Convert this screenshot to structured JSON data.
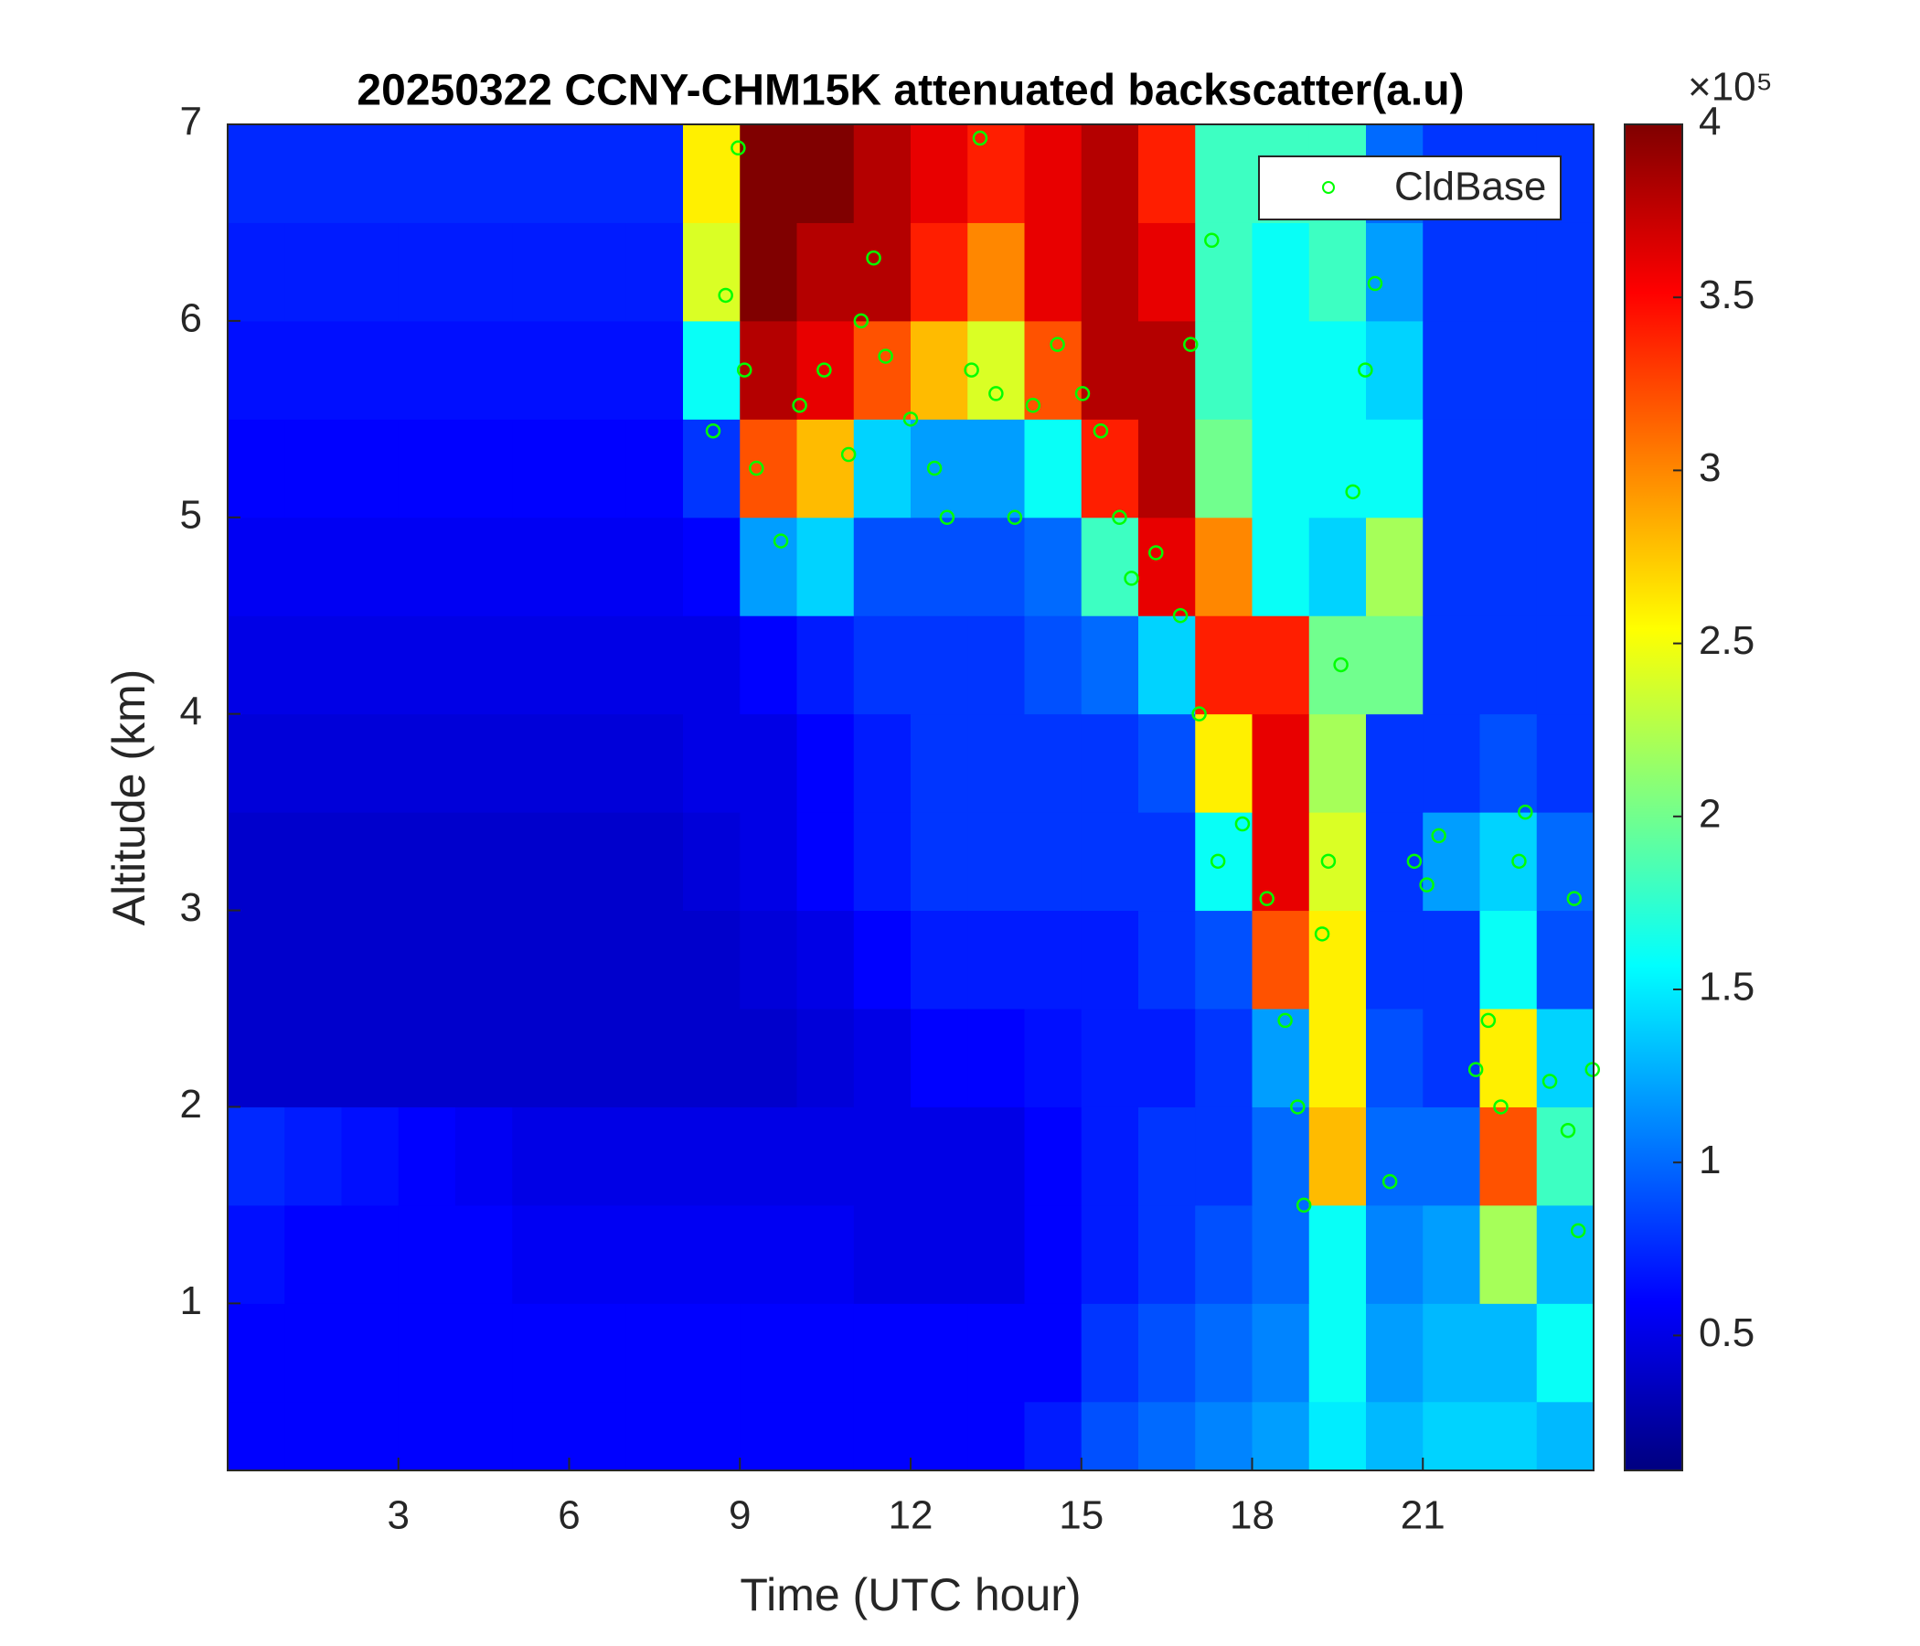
{
  "chart_data": {
    "type": "heatmap",
    "title": "20250322 CCNY-CHM15K attenuated backscatter(a.u)",
    "x_label": "Time (UTC hour)",
    "y_label": "Altitude (km)",
    "colormap": "jet",
    "colorbar_multiplier": "×10⁵",
    "x": [
      0,
      1,
      2,
      3,
      4,
      5,
      6,
      7,
      8,
      9,
      10,
      11,
      12,
      13,
      14,
      15,
      16,
      17,
      18,
      19,
      20,
      21,
      22,
      23,
      24
    ],
    "y": [
      0.15,
      0.5,
      1,
      1.5,
      2,
      2.5,
      3,
      3.5,
      4,
      4.5,
      5,
      5.5,
      6,
      6.5,
      7
    ],
    "z": [
      [
        0.6,
        0.6,
        0.6,
        0.6,
        0.6,
        0.6,
        0.6,
        0.6,
        0.6,
        0.6,
        0.6,
        0.6,
        0.6,
        0.6,
        0.7,
        0.9,
        1.0,
        1.1,
        1.2,
        1.5,
        1.3,
        1.4,
        1.4,
        1.3
      ],
      [
        0.6,
        0.6,
        0.6,
        0.6,
        0.6,
        0.6,
        0.6,
        0.6,
        0.6,
        0.6,
        0.6,
        0.6,
        0.6,
        0.6,
        0.6,
        0.8,
        0.9,
        1.0,
        1.1,
        1.6,
        1.2,
        1.3,
        1.3,
        1.6
      ],
      [
        0.65,
        0.6,
        0.6,
        0.6,
        0.6,
        0.55,
        0.55,
        0.55,
        0.55,
        0.55,
        0.55,
        0.5,
        0.5,
        0.5,
        0.6,
        0.7,
        0.8,
        0.9,
        1.0,
        1.6,
        1.1,
        1.2,
        2.2,
        1.3
      ],
      [
        0.75,
        0.7,
        0.65,
        0.6,
        0.55,
        0.5,
        0.5,
        0.5,
        0.5,
        0.5,
        0.5,
        0.5,
        0.5,
        0.5,
        0.6,
        0.7,
        0.8,
        0.8,
        1.0,
        2.8,
        1.0,
        1.0,
        3.2,
        1.8
      ],
      [
        0.4,
        0.4,
        0.4,
        0.4,
        0.4,
        0.4,
        0.4,
        0.4,
        0.4,
        0.4,
        0.45,
        0.5,
        0.6,
        0.6,
        0.65,
        0.7,
        0.7,
        0.8,
        1.2,
        2.6,
        0.9,
        0.8,
        2.6,
        1.4
      ],
      [
        0.4,
        0.4,
        0.4,
        0.4,
        0.4,
        0.4,
        0.4,
        0.4,
        0.4,
        0.45,
        0.5,
        0.6,
        0.7,
        0.7,
        0.7,
        0.7,
        0.8,
        0.9,
        3.2,
        2.6,
        0.8,
        0.8,
        1.6,
        0.9
      ],
      [
        0.4,
        0.4,
        0.4,
        0.4,
        0.4,
        0.4,
        0.4,
        0.4,
        0.45,
        0.5,
        0.6,
        0.7,
        0.8,
        0.8,
        0.8,
        0.8,
        0.8,
        1.6,
        3.6,
        2.4,
        0.8,
        1.2,
        1.4,
        1.0
      ],
      [
        0.45,
        0.45,
        0.45,
        0.45,
        0.45,
        0.45,
        0.45,
        0.45,
        0.5,
        0.5,
        0.6,
        0.7,
        0.8,
        0.8,
        0.8,
        0.8,
        0.9,
        2.6,
        3.6,
        2.2,
        0.8,
        0.8,
        0.9,
        0.8
      ],
      [
        0.5,
        0.5,
        0.5,
        0.5,
        0.5,
        0.5,
        0.5,
        0.5,
        0.5,
        0.6,
        0.7,
        0.8,
        0.8,
        0.8,
        0.9,
        1.0,
        1.4,
        3.4,
        3.4,
        2.0,
        2.0,
        0.8,
        0.8,
        0.8
      ],
      [
        0.55,
        0.55,
        0.55,
        0.55,
        0.55,
        0.55,
        0.55,
        0.55,
        0.6,
        1.2,
        1.4,
        0.9,
        0.9,
        0.9,
        1.0,
        1.8,
        3.6,
        3.0,
        1.6,
        1.4,
        2.2,
        0.8,
        0.8,
        0.8
      ],
      [
        0.6,
        0.6,
        0.6,
        0.6,
        0.6,
        0.6,
        0.6,
        0.6,
        0.8,
        3.2,
        2.8,
        1.4,
        1.2,
        1.2,
        1.6,
        3.4,
        3.8,
        2.0,
        1.6,
        1.6,
        1.6,
        0.8,
        0.8,
        0.8
      ],
      [
        0.65,
        0.65,
        0.65,
        0.65,
        0.65,
        0.65,
        0.65,
        0.65,
        1.6,
        3.8,
        3.6,
        3.2,
        2.8,
        2.4,
        3.2,
        3.8,
        3.8,
        1.8,
        1.6,
        1.6,
        1.4,
        0.8,
        0.8,
        0.8
      ],
      [
        0.7,
        0.7,
        0.7,
        0.7,
        0.7,
        0.7,
        0.7,
        0.7,
        2.4,
        4.0,
        3.8,
        3.8,
        3.4,
        3.0,
        3.6,
        3.8,
        3.6,
        1.8,
        1.6,
        1.8,
        1.2,
        0.8,
        0.8,
        0.8
      ],
      [
        0.75,
        0.75,
        0.75,
        0.75,
        0.75,
        0.75,
        0.75,
        0.75,
        2.6,
        4.0,
        4.0,
        3.8,
        3.6,
        3.4,
        3.6,
        3.8,
        3.4,
        1.8,
        1.8,
        1.8,
        1.0,
        0.8,
        0.8,
        0.8
      ]
    ],
    "clim": [
      0.11,
      4
    ],
    "cticks": [
      0.5,
      1,
      1.5,
      2,
      2.5,
      3,
      3.5,
      4
    ],
    "xlim": [
      0,
      24
    ],
    "xticks": [
      3,
      6,
      9,
      12,
      15,
      18,
      21
    ],
    "ylim": [
      0.15,
      7
    ],
    "yticks": [
      1,
      2,
      3,
      4,
      5,
      6,
      7
    ],
    "legend_position": "upper right",
    "series": [
      {
        "name": "CldBase",
        "type": "scatter",
        "color": "#00ff00",
        "x": [
          8.53,
          8.75,
          8.97,
          9.08,
          9.29,
          9.72,
          10.05,
          10.48,
          10.91,
          11.13,
          11.35,
          11.56,
          12.0,
          12.42,
          12.64,
          13.07,
          13.22,
          13.5,
          13.83,
          14.15,
          14.58,
          15.02,
          15.34,
          15.67,
          15.88,
          16.31,
          16.74,
          16.92,
          17.07,
          17.29,
          17.4,
          17.83,
          18.26,
          18.58,
          18.8,
          18.91,
          19.23,
          19.34,
          19.56,
          19.77,
          19.99,
          20.16,
          20.42,
          20.85,
          21.07,
          21.28,
          21.93,
          22.15,
          22.37,
          22.69,
          22.8,
          23.23,
          23.55,
          23.66,
          23.73,
          23.98
        ],
        "values": [
          5.44,
          6.13,
          6.88,
          5.75,
          5.25,
          4.88,
          5.57,
          5.75,
          5.32,
          6.0,
          6.32,
          5.82,
          5.5,
          5.25,
          5.0,
          5.75,
          6.93,
          5.63,
          5.0,
          5.57,
          5.88,
          5.63,
          5.44,
          5.0,
          4.69,
          4.82,
          4.5,
          5.88,
          4.0,
          6.41,
          3.25,
          3.44,
          3.06,
          2.44,
          2.0,
          1.5,
          2.88,
          3.25,
          4.25,
          5.13,
          5.75,
          6.19,
          1.62,
          3.25,
          3.13,
          3.38,
          2.19,
          2.44,
          2.0,
          3.25,
          3.5,
          2.13,
          1.88,
          3.06,
          1.37,
          2.19
        ]
      }
    ]
  }
}
